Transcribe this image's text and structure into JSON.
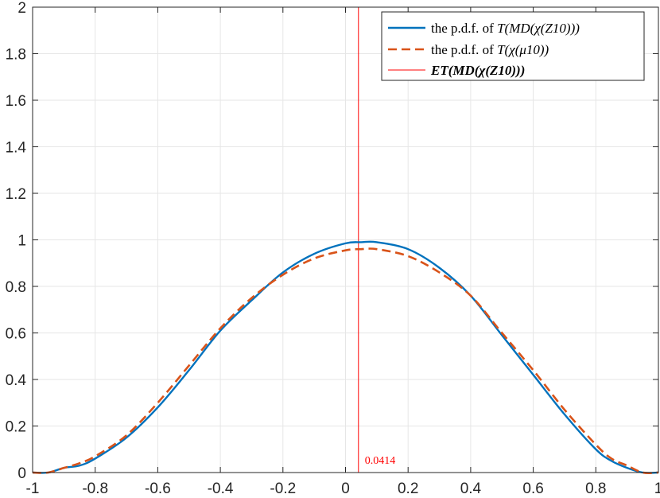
{
  "chart_data": {
    "type": "line",
    "xlim": [
      -1,
      1
    ],
    "ylim": [
      0,
      2
    ],
    "grid": true,
    "legend_placement": "top-right",
    "x_ticks": [
      "-1",
      "-0.8",
      "-0.6",
      "-0.4",
      "-0.2",
      "0",
      "0.2",
      "0.4",
      "0.6",
      "0.8",
      "1"
    ],
    "y_ticks": [
      "0",
      "0.2",
      "0.4",
      "0.6",
      "0.8",
      "1",
      "1.2",
      "1.4",
      "1.6",
      "1.8",
      "2"
    ],
    "series": [
      {
        "name": "the p.d.f. of T(MD(χ(Z10)))",
        "color": "#0072BD",
        "style": "solid",
        "x": [
          -1.0,
          -0.95,
          -0.9,
          -0.85,
          -0.8,
          -0.7,
          -0.6,
          -0.5,
          -0.4,
          -0.3,
          -0.2,
          -0.1,
          0.0,
          0.05,
          0.1,
          0.2,
          0.3,
          0.4,
          0.5,
          0.6,
          0.7,
          0.8,
          0.85,
          0.9,
          0.95,
          1.0
        ],
        "y": [
          0.0,
          0.0,
          0.02,
          0.03,
          0.06,
          0.15,
          0.28,
          0.44,
          0.61,
          0.74,
          0.86,
          0.94,
          0.985,
          0.99,
          0.99,
          0.96,
          0.88,
          0.76,
          0.59,
          0.42,
          0.25,
          0.1,
          0.05,
          0.02,
          0.0,
          0.0
        ]
      },
      {
        "name": "the p.d.f. of T(χ(μ10))",
        "color": "#D95319",
        "style": "dashed",
        "x": [
          -1.0,
          -0.95,
          -0.9,
          -0.85,
          -0.8,
          -0.7,
          -0.6,
          -0.5,
          -0.4,
          -0.3,
          -0.2,
          -0.1,
          0.0,
          0.05,
          0.1,
          0.2,
          0.3,
          0.4,
          0.5,
          0.6,
          0.7,
          0.8,
          0.85,
          0.9,
          0.95,
          1.0
        ],
        "y": [
          0.0,
          0.0,
          0.02,
          0.04,
          0.07,
          0.16,
          0.3,
          0.46,
          0.62,
          0.75,
          0.85,
          0.92,
          0.955,
          0.96,
          0.96,
          0.93,
          0.86,
          0.76,
          0.6,
          0.44,
          0.27,
          0.12,
          0.06,
          0.03,
          0.0,
          0.0
        ]
      },
      {
        "name": "ET(MD(χ(Z10)))",
        "color": "#FF0000",
        "style": "vertical-line",
        "x_value": 0.0414
      }
    ],
    "legend": {
      "entries": [
        {
          "prefix": "the p.d.f. of ",
          "math": "T(MD(χ(Z10)))"
        },
        {
          "prefix": "the p.d.f. of ",
          "math": "T(χ(μ10))"
        },
        {
          "prefix": "",
          "math": "ET(MD(χ(Z10)))"
        }
      ]
    },
    "annotation": {
      "text": "0.0414",
      "color": "#FF0000"
    }
  }
}
